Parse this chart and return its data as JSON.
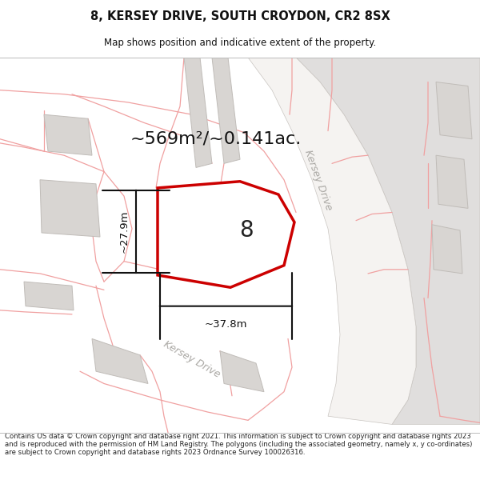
{
  "title_line1": "8, KERSEY DRIVE, SOUTH CROYDON, CR2 8SX",
  "title_line2": "Map shows position and indicative extent of the property.",
  "area_text": "~569m²/~0.141ac.",
  "plot_number": "8",
  "dim_width": "~37.8m",
  "dim_height": "~27.9m",
  "road_label_upper": "Kersey Drive",
  "road_label_lower": "Kersey Drive",
  "footer_text": "Contains OS data © Crown copyright and database right 2021. This information is subject to Crown copyright and database rights 2023 and is reproduced with the permission of HM Land Registry. The polygons (including the associated geometry, namely x, y co-ordinates) are subject to Crown copyright and database rights 2023 Ordnance Survey 100026316.",
  "map_bg": "#ffffff",
  "plot_fill": "#ffffff",
  "plot_edge": "#cc0000",
  "plot_edge_lw": 2.5,
  "road_fill": "#e0dedd",
  "road_edge": "#c8c4c0",
  "building_fill": "#d8d5d2",
  "building_edge": "#c0bcb8",
  "prop_line_color": "#f0a0a0",
  "dim_line_color": "#111111",
  "title_color": "#111111",
  "footer_color": "#222222",
  "road_text_color": "#aaa8a4",
  "area_text_color": "#111111"
}
